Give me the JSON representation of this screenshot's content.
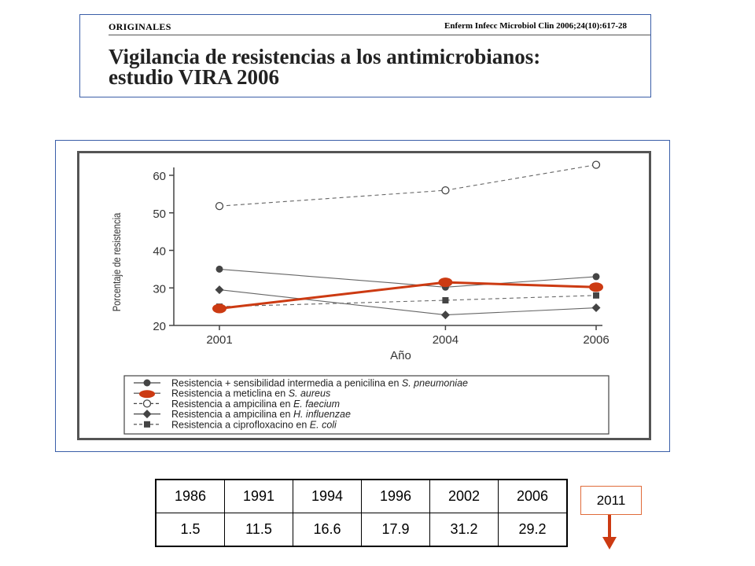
{
  "header": {
    "section": "ORIGINALES",
    "journal_ref": "Enferm Infecc Microbiol Clin 2006;24(10):617-28",
    "title_line1": "Vigilancia de resistencias a los antimicrobianos:",
    "title_line2": "estudio VIRA 2006"
  },
  "chart_data": {
    "type": "line",
    "title": "",
    "xlabel": "Año",
    "ylabel": "Porcentaje de resistencia",
    "x": [
      2001,
      2004,
      2006
    ],
    "xlim": [
      2001,
      2006
    ],
    "ylim": [
      20,
      60
    ],
    "yticks": [
      20,
      30,
      40,
      50,
      60
    ],
    "grid": false,
    "legend_position": "bottom",
    "series": [
      {
        "name": "Resistencia + sensibilidad intermedia a penicilina en S. pneumoniae",
        "values": [
          35,
          30.2,
          33
        ],
        "marker": "circle-filled",
        "dash": "solid",
        "color": "#444444"
      },
      {
        "name": "Resistencia a meticlina en S. aureus",
        "values": [
          24.5,
          31.5,
          30.2
        ],
        "marker": "circle-filled",
        "dash": "solid",
        "color": "#cc3a12",
        "highlight": true
      },
      {
        "name": "Resistencia a ampicilina en E. faecium",
        "values": [
          51.8,
          56,
          62.8
        ],
        "marker": "circle-open",
        "dash": "dashed",
        "color": "#444444"
      },
      {
        "name": "Resistencia a ampicilina en H. influenzae",
        "values": [
          29.5,
          22.8,
          24.7
        ],
        "marker": "diamond",
        "dash": "solid",
        "color": "#444444"
      },
      {
        "name": "Resistencia a ciprofloxacino en E. coli",
        "values": [
          25,
          26.7,
          28
        ],
        "marker": "square",
        "dash": "dashed",
        "color": "#444444"
      }
    ]
  },
  "table": {
    "years": [
      "1986",
      "1991",
      "1994",
      "1996",
      "2002",
      "2006"
    ],
    "values": [
      "1.5",
      "11.5",
      "16.6",
      "17.9",
      "31.2",
      "29.2"
    ]
  },
  "callout": {
    "label": "2011"
  },
  "colors": {
    "frame_border": "#3a5ea8",
    "highlight_series": "#cc3a12",
    "callout_border": "#e06b3a"
  }
}
